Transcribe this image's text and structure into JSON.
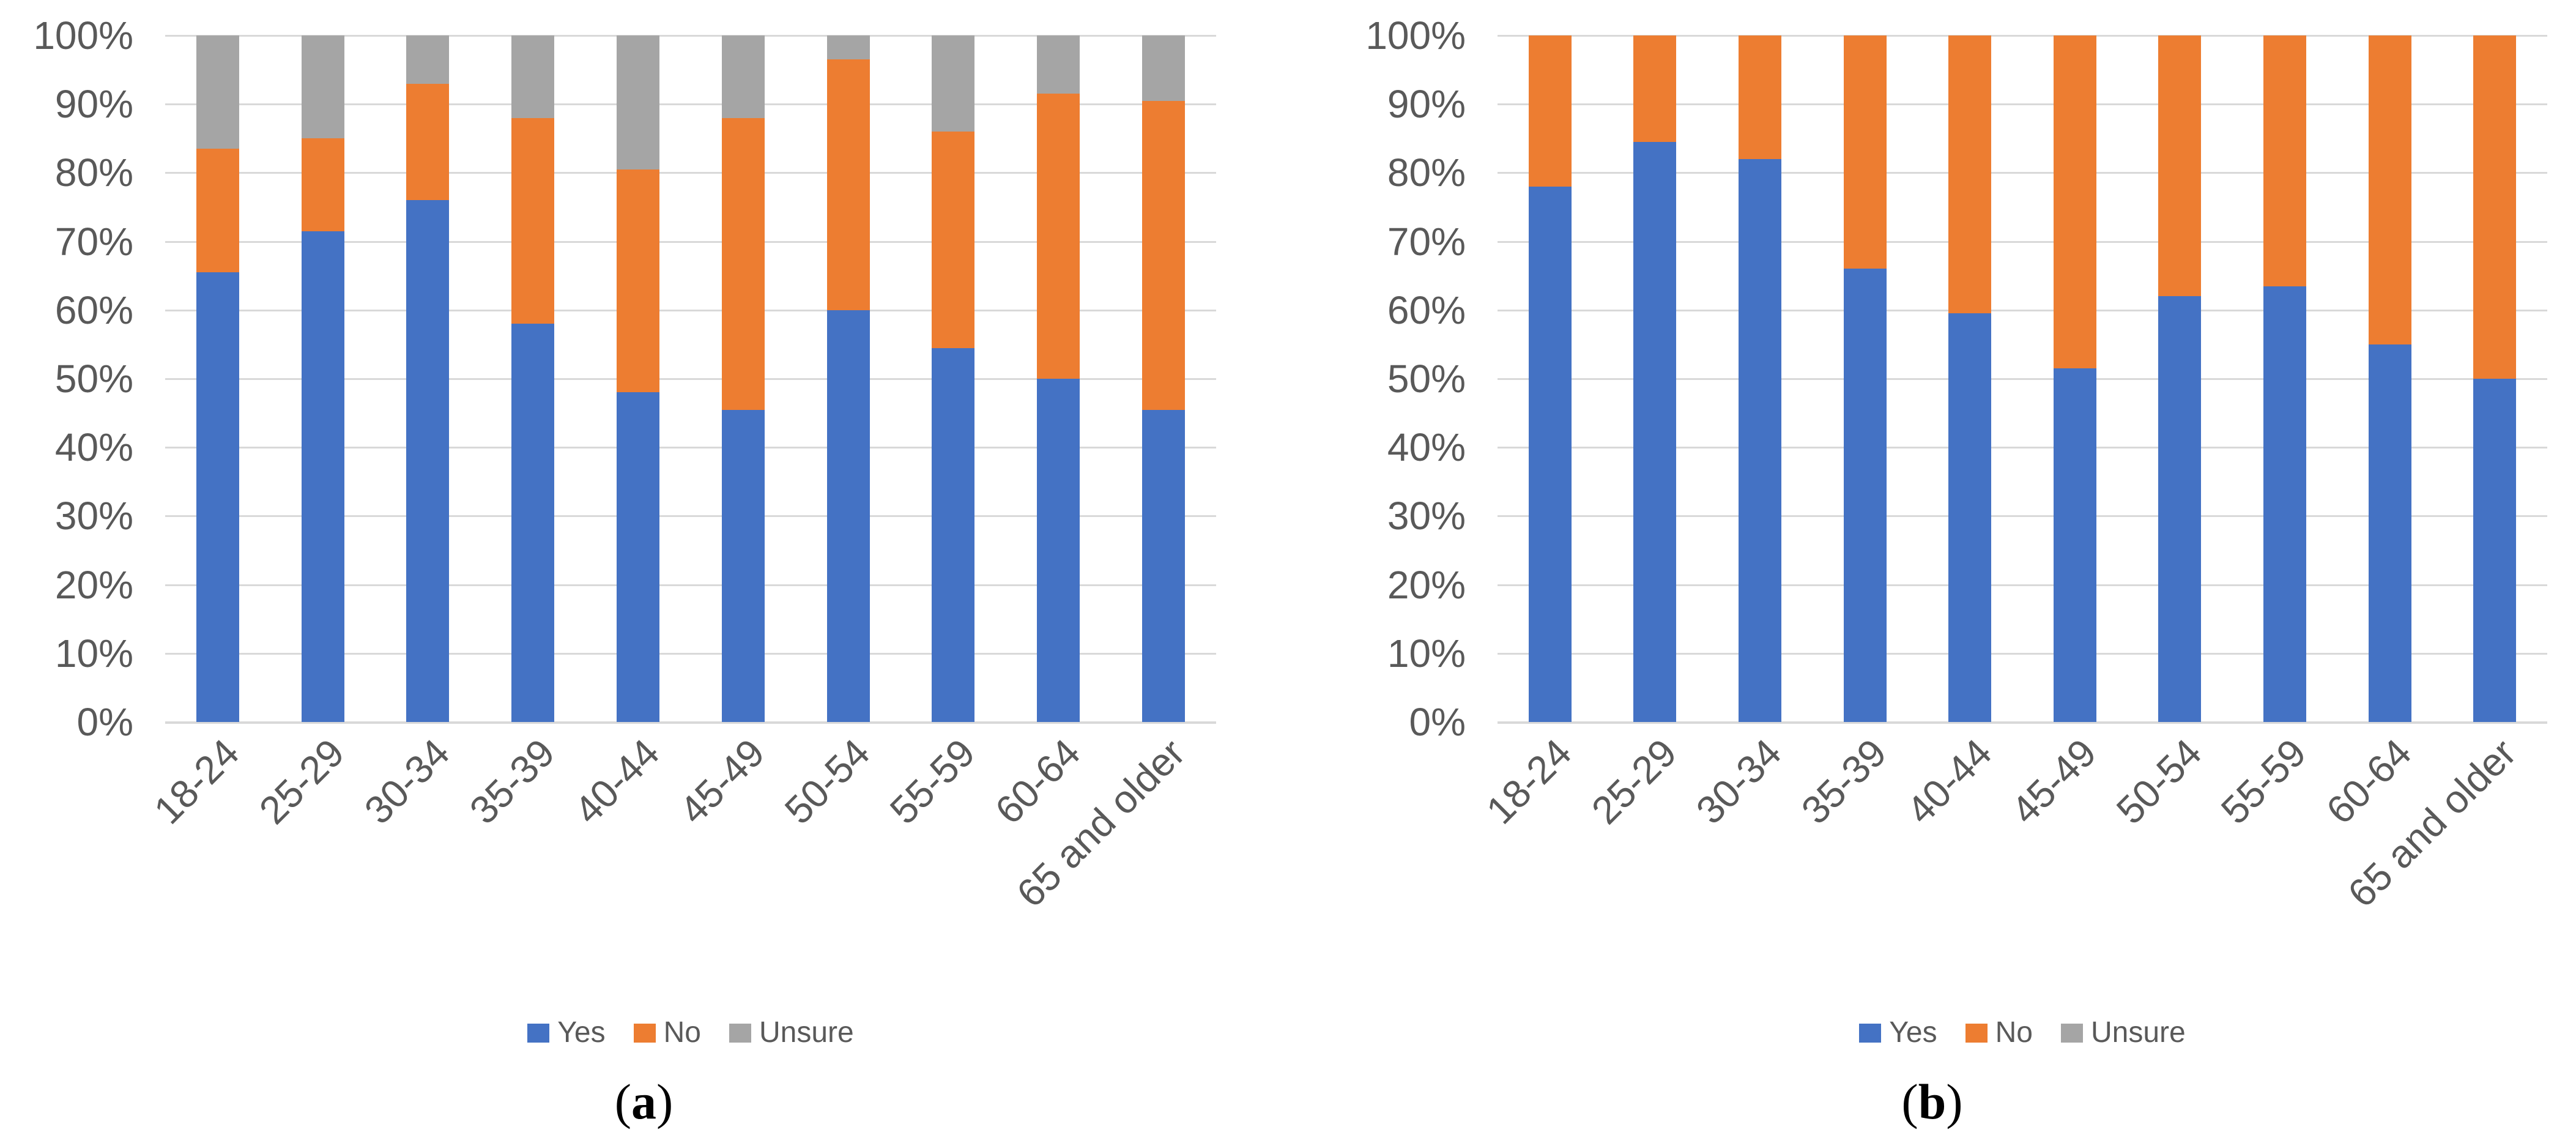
{
  "figure": {
    "background": "#FFFFFF"
  },
  "colors": {
    "series": {
      "Yes": "#4472C4",
      "No": "#ED7D31",
      "Unsure": "#A5A5A5"
    },
    "gridline": "#D9D9D9",
    "axis_line": "#D9D9D9",
    "tick_text": "#595959",
    "legend_text": "#595959",
    "caption_text": "#000000"
  },
  "y_axis": {
    "tick_labels": [
      "100%",
      "90%",
      "80%",
      "70%",
      "60%",
      "50%",
      "40%",
      "30%",
      "20%",
      "10%",
      "0%"
    ]
  },
  "legend": {
    "items": [
      "Yes",
      "No",
      "Unsure"
    ]
  },
  "chart_data": [
    {
      "id": "a",
      "type": "bar",
      "stacked": true,
      "units": "percent",
      "title": "",
      "xlabel": "",
      "ylabel": "",
      "ylim": [
        0,
        100
      ],
      "ytick_step": 10,
      "grid": true,
      "legend_position": "bottom",
      "caption_open": "(",
      "caption_letter": "a",
      "caption_close": ")",
      "categories": [
        "18-24",
        "25-29",
        "30-34",
        "35-39",
        "40-44",
        "45-49",
        "50-54",
        "55-59",
        "60-64",
        "65 and older"
      ],
      "series": [
        {
          "name": "Yes",
          "color": "#4472C4",
          "values": [
            65.5,
            71.5,
            76,
            58,
            48,
            45.5,
            60,
            54.5,
            50,
            45.5
          ]
        },
        {
          "name": "No",
          "color": "#ED7D31",
          "values": [
            18,
            13.5,
            17,
            30,
            32.5,
            42.5,
            36.5,
            31.5,
            41.5,
            45
          ]
        },
        {
          "name": "Unsure",
          "color": "#A5A5A5",
          "values": [
            16.5,
            15,
            7,
            12,
            19.5,
            12,
            3.5,
            14,
            8.5,
            9.5
          ]
        }
      ]
    },
    {
      "id": "b",
      "type": "bar",
      "stacked": true,
      "units": "percent",
      "title": "",
      "xlabel": "",
      "ylabel": "",
      "ylim": [
        0,
        100
      ],
      "ytick_step": 10,
      "grid": true,
      "legend_position": "bottom",
      "caption_open": "(",
      "caption_letter": "b",
      "caption_close": ")",
      "categories": [
        "18-24",
        "25-29",
        "30-34",
        "35-39",
        "40-44",
        "45-49",
        "50-54",
        "55-59",
        "60-64",
        "65 and older"
      ],
      "series": [
        {
          "name": "Yes",
          "color": "#4472C4",
          "values": [
            78,
            84.5,
            82,
            66,
            59.5,
            51.5,
            62,
            63.5,
            55,
            50
          ]
        },
        {
          "name": "No",
          "color": "#ED7D31",
          "values": [
            22,
            15.5,
            18,
            34,
            40.5,
            48.5,
            38,
            36.5,
            45,
            50
          ]
        },
        {
          "name": "Unsure",
          "color": "#A5A5A5",
          "values": [
            0,
            0,
            0,
            0,
            0,
            0,
            0,
            0,
            0,
            0
          ]
        }
      ]
    }
  ]
}
